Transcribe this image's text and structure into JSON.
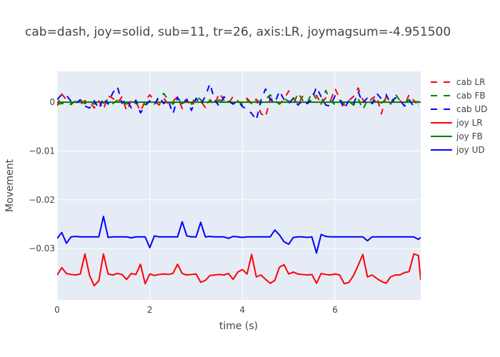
{
  "chart_data": {
    "type": "line",
    "title": "cab=dash, joy=solid, sub=11, tr=26, axis:LR, joymagsum=-4.951500",
    "xlabel": "time (s)",
    "ylabel": "Movement",
    "xlim": [
      0,
      7.85
    ],
    "ylim": [
      -0.0405,
      0.0063
    ],
    "xticks": [
      0,
      2,
      4,
      6
    ],
    "xtick_labels": [
      "0",
      "2",
      "4",
      "6"
    ],
    "yticks": [
      0,
      -0.01,
      -0.02,
      -0.03
    ],
    "ytick_labels": [
      "0",
      "−0.01",
      "−0.02",
      "−0.03"
    ],
    "grid": true,
    "legend_position": "top-right",
    "series": [
      {
        "name": "cab LR",
        "color": "#ff0000",
        "dash": true,
        "x": [
          0.0,
          0.1,
          0.2,
          0.3,
          0.4,
          0.5,
          0.6,
          0.7,
          0.8,
          0.9,
          1.0,
          1.1,
          1.2,
          1.3,
          1.4,
          1.5,
          1.6,
          1.7,
          1.8,
          1.9,
          2.0,
          2.1,
          2.2,
          2.3,
          2.4,
          2.5,
          2.6,
          2.7,
          2.8,
          2.9,
          3.0,
          3.1,
          3.2,
          3.3,
          3.4,
          3.5,
          3.6,
          3.7,
          3.8,
          3.9,
          4.0,
          4.1,
          4.2,
          4.3,
          4.4,
          4.5,
          4.6,
          4.7,
          4.8,
          4.9,
          5.0,
          5.1,
          5.2,
          5.3,
          5.4,
          5.5,
          5.6,
          5.7,
          5.8,
          5.9,
          6.0,
          6.1,
          6.2,
          6.3,
          6.4,
          6.5,
          6.6,
          6.7,
          6.8,
          6.9,
          7.0,
          7.1,
          7.2,
          7.3,
          7.4,
          7.5,
          7.6,
          7.7,
          7.8
        ],
        "y": [
          -0.0008,
          0.0017,
          0.0005,
          -0.0003,
          0.0002,
          -0.0005,
          0.0003,
          0.0001,
          -0.0012,
          0.0003,
          -0.0015,
          0.0013,
          0.0008,
          -0.0002,
          0.0011,
          -0.0018,
          0.0004,
          0.0001,
          -0.0019,
          0.0002,
          0.0015,
          0.0003,
          -0.0006,
          0.0008,
          -0.0004,
          0.0002,
          0.0011,
          -0.0013,
          0.0004,
          -0.0009,
          0.0006,
          0.0002,
          -0.0011,
          0.0005,
          -0.0006,
          0.0019,
          0.0004,
          -0.0003,
          0.0012,
          0.0002,
          -0.0004,
          0.0008,
          -0.0003,
          0.0006,
          -0.0023,
          -0.0031,
          0.0008,
          0.0003,
          -0.0004,
          0.0006,
          0.0023,
          0.0009,
          -0.0005,
          0.0012,
          -0.0003,
          0.0005,
          0.0014,
          -0.0004,
          0.0009,
          0.0002,
          0.0028,
          0.0007,
          -0.0006,
          0.0003,
          0.0012,
          0.0029,
          0.0005,
          -0.0004,
          0.0008,
          0.0013,
          -0.0024,
          0.0011,
          -0.0003,
          0.0006,
          0.0004,
          -0.0008,
          0.0016,
          0.0003,
          -0.0002
        ]
      },
      {
        "name": "cab FB",
        "color": "#008000",
        "dash": true,
        "x": [
          0.0,
          0.1,
          0.2,
          0.3,
          0.4,
          0.5,
          0.6,
          0.7,
          0.8,
          0.9,
          1.0,
          1.1,
          1.2,
          1.3,
          1.4,
          1.5,
          1.6,
          1.7,
          1.8,
          1.9,
          2.0,
          2.1,
          2.2,
          2.3,
          2.4,
          2.5,
          2.6,
          2.7,
          2.8,
          2.9,
          3.0,
          3.1,
          3.2,
          3.3,
          3.4,
          3.5,
          3.6,
          3.7,
          3.8,
          3.9,
          4.0,
          4.1,
          4.2,
          4.3,
          4.4,
          4.5,
          4.6,
          4.7,
          4.8,
          4.9,
          5.0,
          5.1,
          5.2,
          5.3,
          5.4,
          5.5,
          5.6,
          5.7,
          5.8,
          5.9,
          6.0,
          6.1,
          6.2,
          6.3,
          6.4,
          6.5,
          6.6,
          6.7,
          6.8,
          6.9,
          7.0,
          7.1,
          7.2,
          7.3,
          7.4,
          7.5,
          7.6,
          7.7,
          7.8
        ],
        "y": [
          -0.0004,
          -0.0003,
          -0.0002,
          -0.0005,
          0.0003,
          0.0004,
          -0.0003,
          0.0002,
          -0.0004,
          0.0003,
          -0.0002,
          0.0006,
          -0.0003,
          0.0004,
          0.0001,
          -0.0004,
          0.0005,
          -0.0003,
          0.0002,
          -0.0005,
          0.0003,
          -0.0004,
          0.0009,
          0.0018,
          0.0004,
          -0.0004,
          0.0006,
          -0.0003,
          0.0002,
          -0.0004,
          0.0012,
          0.0005,
          -0.0006,
          0.0003,
          -0.0004,
          0.0005,
          -0.0003,
          0.0002,
          -0.0004,
          0.0003,
          -0.0006,
          0.0004,
          -0.0003,
          0.0005,
          -0.0002,
          0.0006,
          0.0015,
          0.0003,
          -0.0004,
          0.0007,
          0.0002,
          -0.0005,
          0.0019,
          0.0004,
          -0.0003,
          0.0021,
          0.0006,
          -0.0004,
          0.0024,
          0.0003,
          -0.0005,
          0.0004,
          -0.0003,
          0.0002,
          -0.0006,
          0.0007,
          -0.0015,
          0.0004,
          -0.0003,
          0.0005,
          -0.0002,
          0.0006,
          -0.0004,
          0.0017,
          0.0003,
          -0.0002,
          0.0005,
          -0.0003,
          0.0002
        ]
      },
      {
        "name": "cab UD",
        "color": "#0000ff",
        "dash": true,
        "x": [
          0.0,
          0.1,
          0.2,
          0.3,
          0.4,
          0.5,
          0.6,
          0.7,
          0.8,
          0.9,
          1.0,
          1.1,
          1.2,
          1.3,
          1.4,
          1.5,
          1.6,
          1.7,
          1.8,
          1.9,
          2.0,
          2.1,
          2.2,
          2.3,
          2.4,
          2.5,
          2.6,
          2.7,
          2.8,
          2.9,
          3.0,
          3.1,
          3.2,
          3.3,
          3.4,
          3.5,
          3.6,
          3.7,
          3.8,
          3.9,
          4.0,
          4.1,
          4.2,
          4.3,
          4.4,
          4.5,
          4.6,
          4.7,
          4.8,
          4.9,
          5.0,
          5.1,
          5.2,
          5.3,
          5.4,
          5.5,
          5.6,
          5.7,
          5.8,
          5.9,
          6.0,
          6.1,
          6.2,
          6.3,
          6.4,
          6.5,
          6.6,
          6.7,
          6.8,
          6.9,
          7.0,
          7.1,
          7.2,
          7.3,
          7.4,
          7.5,
          7.6,
          7.7,
          7.8
        ],
        "y": [
          0.0005,
          0.0016,
          0.0014,
          0.0002,
          -0.0003,
          0.0005,
          -0.0008,
          -0.0012,
          0.0003,
          -0.0014,
          0.0009,
          -0.0004,
          0.0019,
          0.0032,
          -0.0002,
          0.0006,
          -0.0012,
          0.0004,
          -0.0022,
          -0.0008,
          0.0003,
          -0.0005,
          0.0012,
          -0.0003,
          0.0004,
          -0.0024,
          0.0009,
          -0.0003,
          0.0006,
          -0.0017,
          0.0008,
          -0.0005,
          0.0012,
          0.0038,
          0.0004,
          -0.0008,
          0.0011,
          0.0003,
          -0.0004,
          0.0002,
          -0.0009,
          -0.0015,
          -0.0023,
          -0.0037,
          0.0004,
          0.0027,
          0.0006,
          -0.0002,
          0.0023,
          0.0005,
          -0.0003,
          0.0008,
          -0.0006,
          0.0004,
          -0.0003,
          0.0006,
          0.0031,
          0.0011,
          -0.0006,
          -0.0008,
          0.0013,
          0.0006,
          -0.0014,
          0.0004,
          -0.0004,
          0.0021,
          -0.0002,
          0.0009,
          -0.0003,
          0.0018,
          0.0007,
          0.0016,
          -0.0003,
          0.0009,
          0.0004,
          -0.0008,
          0.0005,
          -0.0009,
          -0.0006
        ]
      },
      {
        "name": "joy LR",
        "color": "#ff0000",
        "dash": false,
        "x": [
          0.0,
          0.1,
          0.2,
          0.3,
          0.4,
          0.5,
          0.6,
          0.7,
          0.8,
          0.9,
          1.0,
          1.1,
          1.2,
          1.3,
          1.4,
          1.5,
          1.6,
          1.7,
          1.8,
          1.9,
          2.0,
          2.1,
          2.2,
          2.3,
          2.4,
          2.5,
          2.6,
          2.7,
          2.8,
          2.9,
          3.0,
          3.1,
          3.2,
          3.3,
          3.4,
          3.5,
          3.6,
          3.7,
          3.8,
          3.9,
          4.0,
          4.1,
          4.2,
          4.3,
          4.4,
          4.5,
          4.6,
          4.7,
          4.8,
          4.9,
          5.0,
          5.1,
          5.2,
          5.3,
          5.4,
          5.5,
          5.6,
          5.7,
          5.8,
          5.9,
          6.0,
          6.1,
          6.2,
          6.3,
          6.4,
          6.5,
          6.6,
          6.7,
          6.8,
          6.9,
          7.0,
          7.1,
          7.2,
          7.3,
          7.4,
          7.5,
          7.6,
          7.7,
          7.8,
          7.85
        ],
        "y": [
          -0.0354,
          -0.0339,
          -0.0351,
          -0.0353,
          -0.0354,
          -0.0352,
          -0.0311,
          -0.0355,
          -0.0376,
          -0.0366,
          -0.0311,
          -0.0352,
          -0.0354,
          -0.0351,
          -0.0353,
          -0.0363,
          -0.0351,
          -0.0353,
          -0.0332,
          -0.0372,
          -0.0352,
          -0.0355,
          -0.0353,
          -0.0352,
          -0.0353,
          -0.0351,
          -0.0332,
          -0.0351,
          -0.0354,
          -0.0353,
          -0.0352,
          -0.0369,
          -0.0365,
          -0.0355,
          -0.0354,
          -0.0353,
          -0.0354,
          -0.0351,
          -0.0363,
          -0.0348,
          -0.0343,
          -0.0352,
          -0.0312,
          -0.0358,
          -0.0354,
          -0.0363,
          -0.0371,
          -0.0365,
          -0.0338,
          -0.0333,
          -0.0352,
          -0.0348,
          -0.0352,
          -0.0353,
          -0.0354,
          -0.0353,
          -0.0371,
          -0.0351,
          -0.0353,
          -0.0354,
          -0.0352,
          -0.0354,
          -0.0372,
          -0.0369,
          -0.0355,
          -0.0334,
          -0.0312,
          -0.0358,
          -0.0354,
          -0.0361,
          -0.0367,
          -0.0371,
          -0.0358,
          -0.0354,
          -0.0354,
          -0.0349,
          -0.0347,
          -0.0311,
          -0.0314,
          -0.0364
        ]
      },
      {
        "name": "joy FB",
        "color": "#008000",
        "dash": false,
        "x": [
          0.0,
          7.85
        ],
        "y": [
          0.0,
          0.0
        ]
      },
      {
        "name": "joy UD",
        "color": "#0000ff",
        "dash": false,
        "x": [
          0.0,
          0.1,
          0.2,
          0.3,
          0.4,
          0.5,
          0.6,
          0.7,
          0.8,
          0.9,
          1.0,
          1.1,
          1.2,
          1.3,
          1.4,
          1.5,
          1.6,
          1.7,
          1.8,
          1.9,
          2.0,
          2.1,
          2.2,
          2.3,
          2.4,
          2.5,
          2.6,
          2.7,
          2.8,
          2.9,
          3.0,
          3.1,
          3.2,
          3.3,
          3.4,
          3.5,
          3.6,
          3.7,
          3.8,
          3.9,
          4.0,
          4.1,
          4.2,
          4.3,
          4.4,
          4.5,
          4.6,
          4.7,
          4.8,
          4.9,
          5.0,
          5.1,
          5.2,
          5.3,
          5.4,
          5.5,
          5.6,
          5.7,
          5.8,
          5.9,
          6.0,
          6.1,
          6.2,
          6.3,
          6.4,
          6.5,
          6.6,
          6.7,
          6.8,
          6.9,
          7.0,
          7.1,
          7.2,
          7.3,
          7.4,
          7.5,
          7.6,
          7.7,
          7.8,
          7.85
        ],
        "y": [
          -0.0279,
          -0.0267,
          -0.0289,
          -0.0276,
          -0.0275,
          -0.0276,
          -0.0276,
          -0.0276,
          -0.0276,
          -0.0276,
          -0.0234,
          -0.0277,
          -0.0276,
          -0.0276,
          -0.0276,
          -0.0276,
          -0.0278,
          -0.0276,
          -0.0276,
          -0.0276,
          -0.0298,
          -0.0274,
          -0.0276,
          -0.0276,
          -0.0276,
          -0.0276,
          -0.0276,
          -0.0245,
          -0.0274,
          -0.0276,
          -0.0276,
          -0.0246,
          -0.0276,
          -0.0275,
          -0.0276,
          -0.0276,
          -0.0276,
          -0.0279,
          -0.0275,
          -0.0276,
          -0.0277,
          -0.0276,
          -0.0276,
          -0.0276,
          -0.0276,
          -0.0276,
          -0.0276,
          -0.0262,
          -0.0272,
          -0.0286,
          -0.0291,
          -0.0277,
          -0.0276,
          -0.0276,
          -0.0277,
          -0.0276,
          -0.0309,
          -0.0271,
          -0.0275,
          -0.0276,
          -0.0276,
          -0.0276,
          -0.0276,
          -0.0276,
          -0.0276,
          -0.0276,
          -0.0276,
          -0.0284,
          -0.0276,
          -0.0276,
          -0.0276,
          -0.0276,
          -0.0276,
          -0.0276,
          -0.0276,
          -0.0276,
          -0.0276,
          -0.0276,
          -0.0281,
          -0.0277
        ]
      }
    ]
  }
}
